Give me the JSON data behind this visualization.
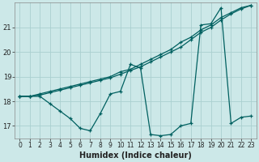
{
  "xlabel": "Humidex (Indice chaleur)",
  "bg_color": "#cce8e8",
  "grid_color": "#aad0d0",
  "line_color": "#006060",
  "xlim": [
    -0.5,
    23.5
  ],
  "ylim": [
    16.5,
    22.0
  ],
  "yticks": [
    17,
    18,
    19,
    20,
    21
  ],
  "xticks": [
    0,
    1,
    2,
    3,
    4,
    5,
    6,
    7,
    8,
    9,
    10,
    11,
    12,
    13,
    14,
    15,
    16,
    17,
    18,
    19,
    20,
    21,
    22,
    23
  ],
  "series1": [
    18.2,
    18.2,
    18.3,
    18.4,
    18.5,
    18.6,
    18.7,
    18.8,
    18.9,
    19.0,
    19.2,
    19.3,
    19.5,
    19.7,
    19.9,
    20.1,
    20.4,
    20.6,
    20.9,
    21.1,
    21.4,
    21.6,
    21.8,
    21.9
  ],
  "series2": [
    18.2,
    18.2,
    18.25,
    18.35,
    18.45,
    18.55,
    18.65,
    18.75,
    18.85,
    18.95,
    19.1,
    19.25,
    19.4,
    19.6,
    19.8,
    20.0,
    20.2,
    20.5,
    20.8,
    21.0,
    21.3,
    21.55,
    21.75,
    21.9
  ],
  "series3": [
    18.2,
    18.2,
    18.2,
    17.9,
    17.6,
    17.3,
    16.9,
    16.8,
    17.5,
    18.3,
    18.4,
    19.5,
    19.35,
    16.65,
    16.6,
    16.65,
    17.0,
    17.1,
    21.1,
    21.15,
    21.8,
    17.1,
    17.35,
    17.4
  ],
  "xlabel_fontsize": 7,
  "tick_fontsize": 5.5,
  "linewidth": 0.9,
  "markersize": 3
}
